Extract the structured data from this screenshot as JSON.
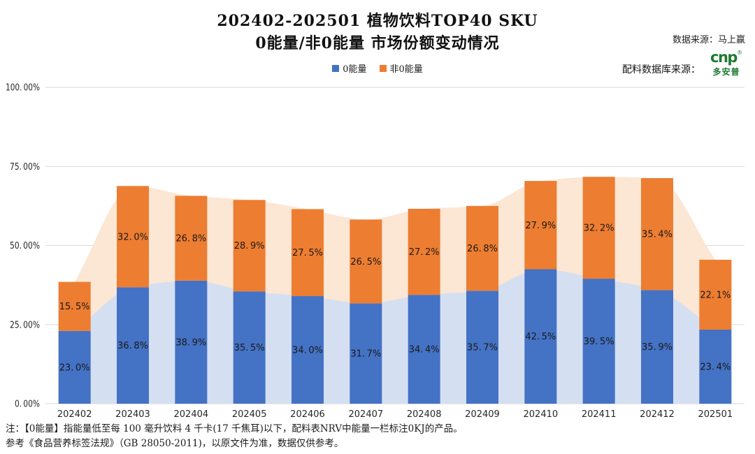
{
  "title": "202402-202501 植物饮料TOP40 SKU",
  "subtitle": "0能量/非0能量 市场份额变动情况",
  "data_source": "数据来源：马上赢",
  "ingredient_source_label": "配料数据库来源：",
  "logo": {
    "brand": "多安普",
    "mark": "cnp",
    "reg": "®",
    "color": "#1E7B33"
  },
  "legend": [
    {
      "label": "0能量",
      "color": "#4472C4"
    },
    {
      "label": "非0能量",
      "color": "#ED7D31"
    }
  ],
  "chart_data": {
    "type": "bar",
    "stacked": true,
    "background_area": true,
    "categories": [
      "202402",
      "202403",
      "202404",
      "202405",
      "202406",
      "202407",
      "202408",
      "202409",
      "202410",
      "202411",
      "202412",
      "202501"
    ],
    "series": [
      {
        "name": "0能量",
        "color": "#4472C4",
        "area_color": "#D5DFF2",
        "values": [
          23.0,
          36.8,
          38.9,
          35.5,
          34.0,
          31.7,
          34.4,
          35.7,
          42.5,
          39.5,
          35.9,
          23.4
        ]
      },
      {
        "name": "非0能量",
        "color": "#ED7D31",
        "area_color": "#FCE6D4",
        "values": [
          15.5,
          32.0,
          26.8,
          28.9,
          27.5,
          26.5,
          27.2,
          26.8,
          27.9,
          32.2,
          35.4,
          22.1
        ]
      }
    ],
    "ylim": [
      0,
      100
    ],
    "yticks": [
      0,
      25,
      50,
      75,
      100
    ],
    "ytick_labels": [
      "0.00%",
      "25.00%",
      "50.00%",
      "75.00%",
      "100.00%"
    ],
    "grid_color": "#D9D9D9",
    "label_color": "#1a1a1a"
  },
  "footnotes": [
    "注：【0能量】指能量低至每 100 毫升饮料 4 千卡(17 千焦耳)以下，配料表NRV中能量一栏标注0KJ的产品。",
    "参考《食品营养标签法规》（GB 28050-2011)，以原文件为准，数据仅供参考。"
  ]
}
